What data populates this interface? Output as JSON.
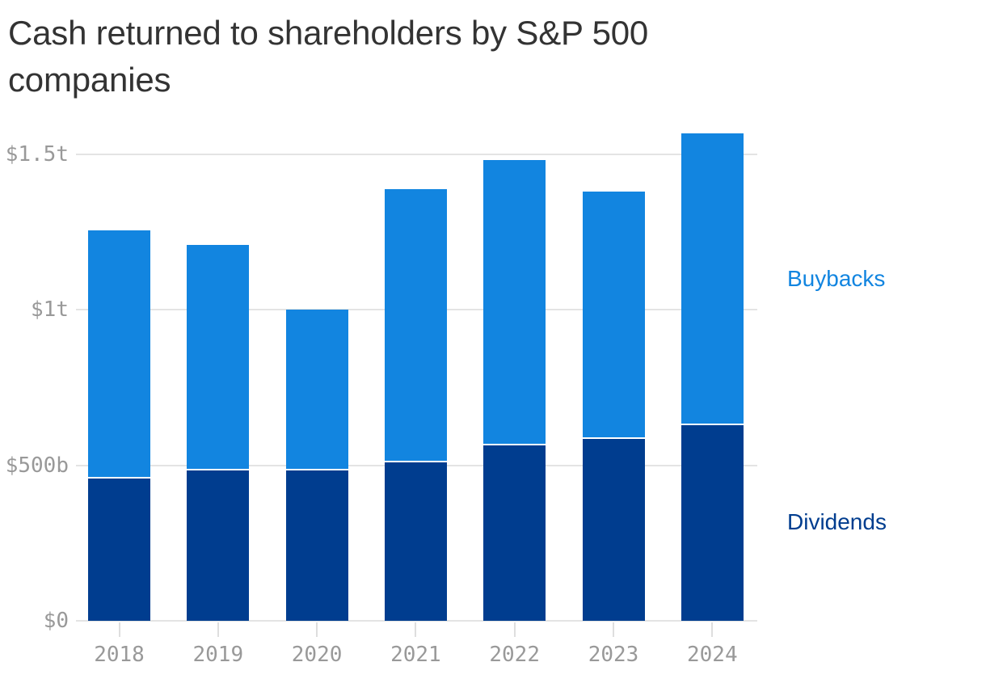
{
  "title": {
    "lines": [
      "Cash returned to shareholders by S&P 500",
      "companies"
    ]
  },
  "chart_data": {
    "type": "bar",
    "stacked": true,
    "title": "Cash returned to shareholders by S&P 500 companies",
    "categories": [
      "2018",
      "2019",
      "2020",
      "2021",
      "2022",
      "2023",
      "2024"
    ],
    "series": [
      {
        "name": "Dividends",
        "color": "#003d8f",
        "values": [
          456,
          484,
          482,
          510,
          564,
          584,
          629
        ]
      },
      {
        "name": "Buybacks",
        "color": "#1285e0",
        "values": [
          799,
          725,
          518,
          877,
          917,
          794,
          938
        ]
      }
    ],
    "unit": "billions of US dollars",
    "xlabel": "",
    "ylabel": "",
    "ylim": [
      0,
      1600
    ],
    "yticks": [
      {
        "value": 0,
        "label": "$0"
      },
      {
        "value": 500,
        "label": "$500b"
      },
      {
        "value": 1000,
        "label": "$1t"
      },
      {
        "value": 1500,
        "label": "$1.5t"
      }
    ],
    "grid": true,
    "legend_position": "right",
    "legend": [
      {
        "label": "Buybacks",
        "color": "#1285e0"
      },
      {
        "label": "Dividends",
        "color": "#003d8f"
      }
    ]
  },
  "colors": {
    "buybacks": "#1285e0",
    "dividends": "#003d8f",
    "gridline": "#e4e4e4",
    "axis_text": "#999999",
    "title_text": "#333333",
    "separator": "#ffffff"
  }
}
